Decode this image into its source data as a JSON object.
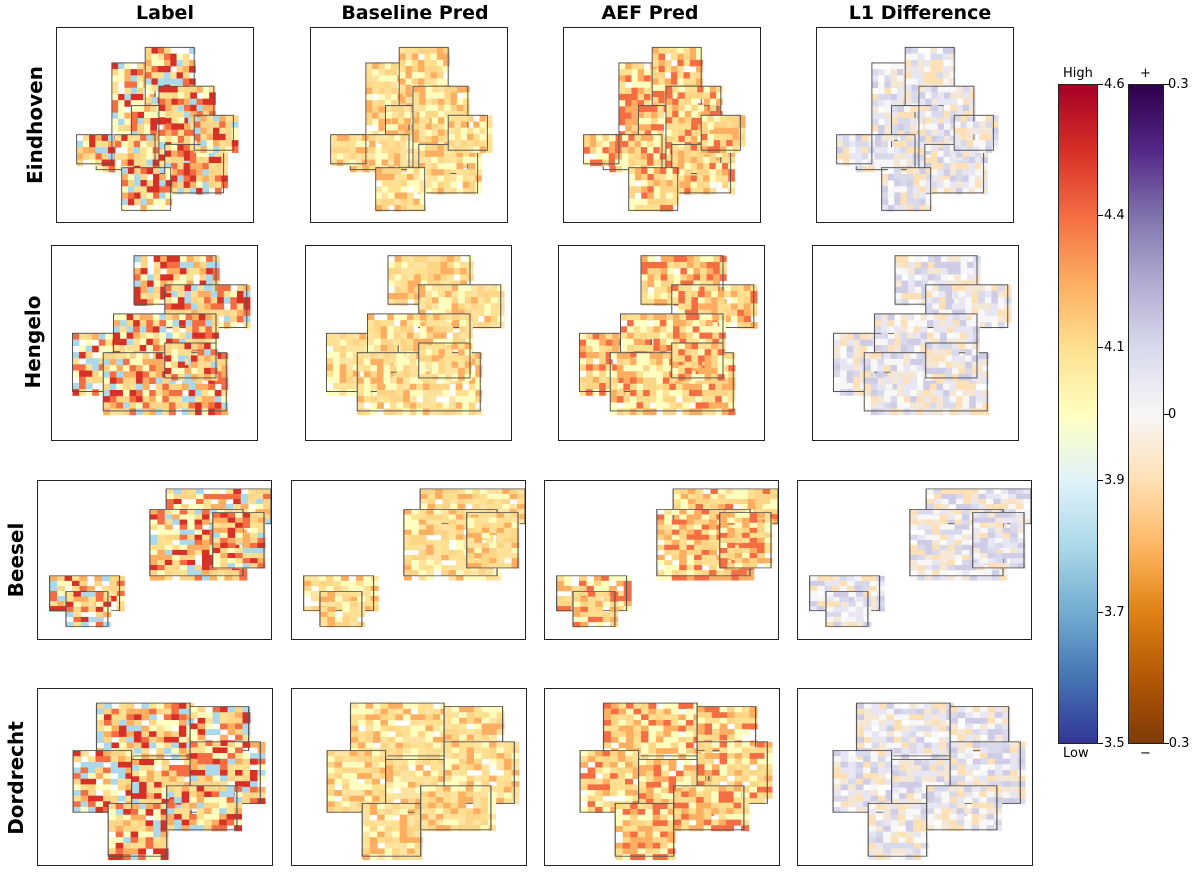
{
  "columns": [
    "Label",
    "Baseline Pred",
    "AEF Pred",
    "L1 Difference"
  ],
  "rows": [
    "Eindhoven",
    "Hengelo",
    "Beesel",
    "Dordrecht"
  ],
  "colorbars": {
    "value": {
      "top_label": "High",
      "bottom_label": "Low",
      "ticks": [
        "4.6",
        "4.4",
        "4.1",
        "3.9",
        "3.7",
        "3.5"
      ],
      "colormap": "RdYlBu_r",
      "colors": [
        "#313695",
        "#4575b4",
        "#74add1",
        "#abd9e9",
        "#e0f3f8",
        "#ffffbf",
        "#fee090",
        "#fdae61",
        "#f46d43",
        "#d73027",
        "#a50026"
      ]
    },
    "difference": {
      "top_label": "+",
      "bottom_label": "−",
      "ticks": [
        "0.3",
        "0",
        "-0.3"
      ],
      "colormap": "PuOr",
      "colors": [
        "#7f3b08",
        "#b35806",
        "#e08214",
        "#fdb863",
        "#fee0b6",
        "#f7f7f7",
        "#d8daeb",
        "#b2abd2",
        "#8073ac",
        "#542788",
        "#2d004b"
      ]
    }
  },
  "chart_data": {
    "type": "heatmap",
    "description_of_panels": "4x4 grid of city maps: rows are cities, columns are Label, Baseline Pred, AEF Pred, L1 Difference",
    "rows": [
      "Eindhoven",
      "Hengelo",
      "Beesel",
      "Dordrecht"
    ],
    "columns": [
      "Label",
      "Baseline Pred",
      "AEF Pred",
      "L1 Difference"
    ],
    "value_colorbar": {
      "range": [
        3.5,
        4.6
      ],
      "ticks": [
        4.6,
        4.4,
        4.1,
        3.9,
        3.7,
        3.5
      ],
      "top": "High",
      "bottom": "Low"
    },
    "difference_colorbar": {
      "range": [
        -0.3,
        0.3
      ],
      "ticks": [
        0.3,
        0,
        -0.3
      ],
      "top": "+",
      "bottom": "−"
    }
  }
}
